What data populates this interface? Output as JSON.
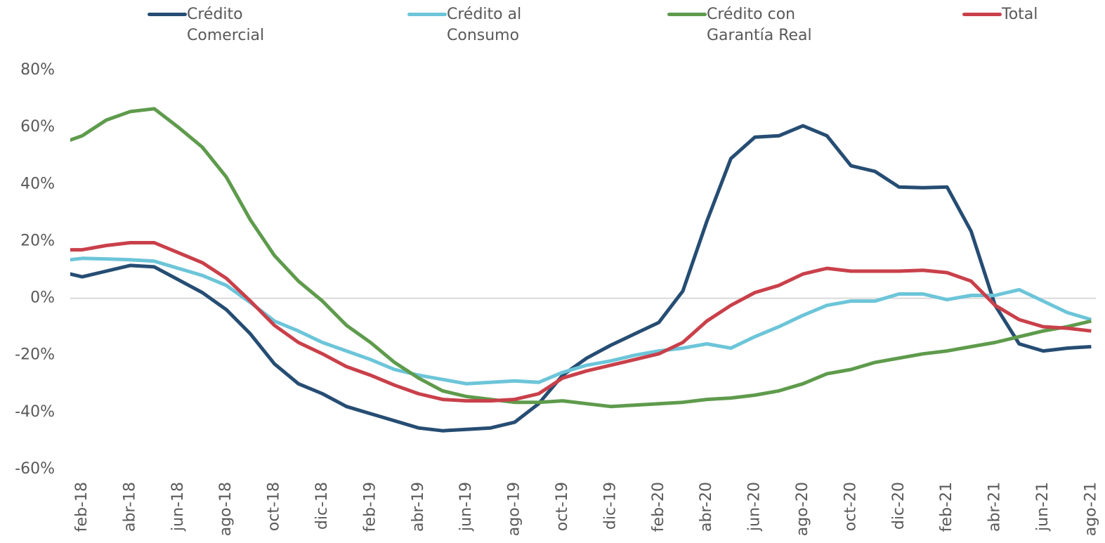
{
  "chart_data": {
    "type": "line",
    "categories": [
      null,
      "feb-18",
      null,
      "abr-18",
      null,
      "jun-18",
      null,
      "ago-18",
      null,
      "oct-18",
      null,
      "dic-18",
      null,
      "feb-19",
      null,
      "abr-19",
      null,
      "jun-19",
      null,
      "ago-19",
      null,
      "oct-19",
      null,
      "dic-19",
      null,
      "feb-20",
      null,
      "abr-20",
      null,
      "jun-20",
      null,
      "ago-20",
      null,
      "oct-20",
      null,
      "dic-20",
      null,
      "feb-21",
      null,
      "abr-21",
      null,
      "jun-21",
      null,
      "ago-21"
    ],
    "series": [
      {
        "name": "Crédito Comercial",
        "color": "#264d73",
        "values": [
          9.5,
          7.5,
          9.5,
          11.5,
          11,
          6.5,
          2,
          -4,
          -12.5,
          -23,
          -30,
          -33.5,
          -38,
          -40.5,
          -43,
          -45.5,
          -46.5,
          -46,
          -45.5,
          -43.5,
          -37,
          -27,
          -21,
          -16.5,
          -12.5,
          -8.5,
          2.5,
          27,
          49,
          56.5,
          57,
          60.5,
          57,
          46.5,
          44.5,
          39,
          38.8,
          39,
          23.5,
          -2.5,
          -16,
          -18.5,
          -17.5,
          -17
        ]
      },
      {
        "name": "Crédito al Consumo",
        "color": "#6cc5d9",
        "values": [
          13,
          14,
          13.8,
          13.5,
          13,
          10.5,
          8,
          4.5,
          -1.5,
          -8,
          -11.5,
          -15.5,
          -18.5,
          -21.5,
          -25,
          -27,
          -28.5,
          -30,
          -29.5,
          -29,
          -29.5,
          -26,
          -23.5,
          -22,
          -20,
          -18.5,
          -17.5,
          -16,
          -17.5,
          -13.5,
          -10,
          -6,
          -2.5,
          -1,
          -1,
          1.5,
          1.5,
          -0.5,
          1,
          1,
          3,
          -1,
          -5,
          -7.5
        ]
      },
      {
        "name": "Crédito con Garantía Real",
        "color": "#5e9b4c",
        "values": [
          54,
          57,
          62.5,
          65.5,
          66.5,
          60,
          53,
          42.5,
          27.5,
          15,
          6,
          -1,
          -9.5,
          -15.5,
          -22.5,
          -28,
          -32.5,
          -34.5,
          -35.5,
          -36.5,
          -36.5,
          -36,
          -37,
          -38,
          -37.5,
          -37,
          -36.5,
          -35.5,
          -35,
          -34,
          -32.5,
          -30,
          -26.5,
          -25,
          -22.5,
          -21,
          -19.5,
          -18.5,
          -17,
          -15.5,
          -13.5,
          -11.5,
          -10,
          -8
        ]
      },
      {
        "name": "Total",
        "color": "#c9404a",
        "values": [
          17,
          17,
          18.5,
          19.5,
          19.5,
          16,
          12.5,
          7,
          -1,
          -9.5,
          -15.5,
          -19.5,
          -24,
          -27,
          -30.5,
          -33.5,
          -35.5,
          -36,
          -36,
          -35.5,
          -33.5,
          -28,
          -25.5,
          -23.5,
          -21.5,
          -19.5,
          -15.5,
          -8,
          -2.5,
          2,
          4.5,
          8.5,
          10.5,
          9.5,
          9.5,
          9.5,
          9.8,
          9,
          6,
          -2.5,
          -7.5,
          -10,
          -10.5,
          -11.5
        ]
      }
    ],
    "ylim": [
      -60,
      80
    ],
    "yticks": [
      {
        "value": -60,
        "label": "-60%"
      },
      {
        "value": -40,
        "label": "-40%"
      },
      {
        "value": -20,
        "label": "-20%"
      },
      {
        "value": 0,
        "label": "0%"
      },
      {
        "value": 20,
        "label": "20%"
      },
      {
        "value": 40,
        "label": "40%"
      },
      {
        "value": 60,
        "label": "60%"
      },
      {
        "value": 80,
        "label": "80%"
      }
    ],
    "legend": "top"
  }
}
